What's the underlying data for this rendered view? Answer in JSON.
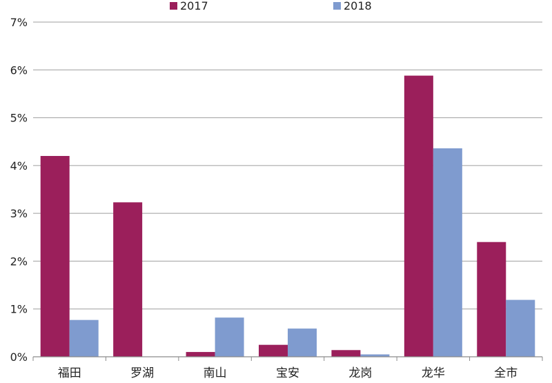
{
  "chart_data": {
    "type": "bar",
    "categories": [
      "福田",
      "罗湖",
      "南山",
      "宝安",
      "龙岗",
      "龙华",
      "全市"
    ],
    "series": [
      {
        "name": "2017",
        "color": "#9b1f5b",
        "values": [
          4.2,
          3.23,
          0.1,
          0.25,
          0.14,
          5.88,
          2.4
        ]
      },
      {
        "name": "2018",
        "color": "#7f9bcf",
        "values": [
          0.77,
          0.0,
          0.82,
          0.59,
          0.05,
          4.36,
          1.19
        ]
      }
    ],
    "y_ticks": [
      "0%",
      "1%",
      "2%",
      "3%",
      "4%",
      "5%",
      "6%",
      "7%"
    ],
    "ylim": [
      0,
      7
    ],
    "y_unit": "%",
    "grid": true,
    "legend_position": "top-center"
  }
}
